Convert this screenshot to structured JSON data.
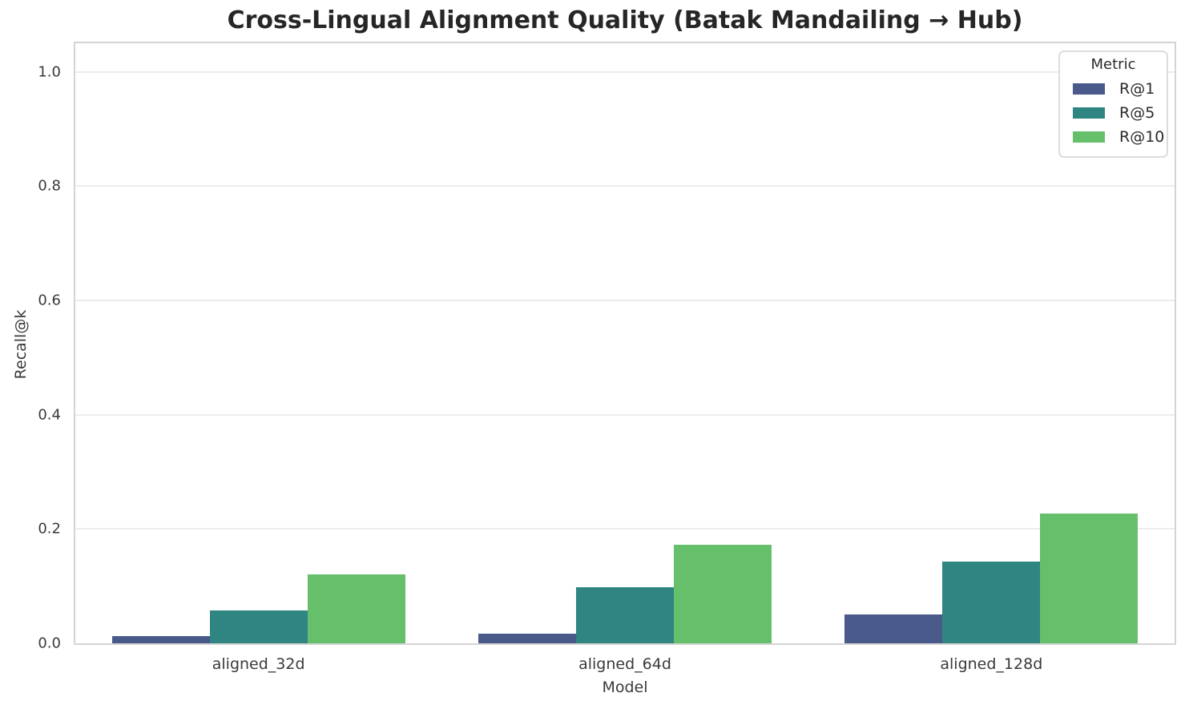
{
  "chart_data": {
    "type": "bar",
    "title": "Cross-Lingual Alignment Quality (Batak Mandailing → Hub)",
    "xlabel": "Model",
    "ylabel": "Recall@k",
    "categories": [
      "aligned_32d",
      "aligned_64d",
      "aligned_128d"
    ],
    "series": [
      {
        "name": "R@1",
        "color": "#49598a",
        "values": [
          0.012,
          0.017,
          0.051
        ]
      },
      {
        "name": "R@5",
        "color": "#2e8582",
        "values": [
          0.058,
          0.098,
          0.143
        ]
      },
      {
        "name": "R@10",
        "color": "#66bf6b",
        "values": [
          0.121,
          0.173,
          0.227
        ]
      }
    ],
    "legend": {
      "title": "Metric",
      "position": "upper right"
    },
    "ylim": [
      0,
      1.05
    ],
    "yticks": [
      0.0,
      0.2,
      0.4,
      0.6,
      0.8,
      1.0
    ],
    "ytick_labels": [
      "0.0",
      "0.2",
      "0.4",
      "0.6",
      "0.8",
      "1.0"
    ],
    "grid": "horizontal",
    "group_total_width_fraction": 0.8
  },
  "colors": {
    "background": "#ffffff",
    "grid": "#ececec",
    "spine": "#d4d4d4",
    "tick_text": "#3a3a3a",
    "title_text": "#262626"
  }
}
